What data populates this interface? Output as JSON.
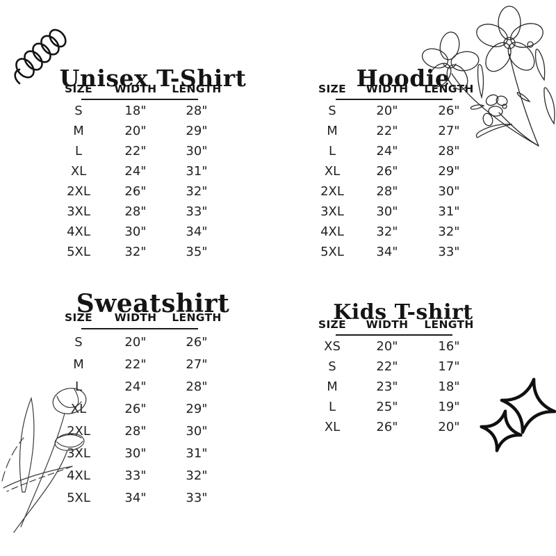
{
  "page": {
    "background_color": "#ffffff",
    "ink_color": "#1a1a1a"
  },
  "tables": [
    {
      "id": "unisex-tshirt",
      "title": "Unisex T-Shirt",
      "headers": [
        "SIZE",
        "WIDTH",
        "LENGTH"
      ],
      "rows": [
        [
          "S",
          "18\"",
          "28\""
        ],
        [
          "M",
          "20\"",
          "29\""
        ],
        [
          "L",
          "22\"",
          "30\""
        ],
        [
          "XL",
          "24\"",
          "31\""
        ],
        [
          "2XL",
          "26\"",
          "32\""
        ],
        [
          "3XL",
          "28\"",
          "33\""
        ],
        [
          "4XL",
          "30\"",
          "34\""
        ],
        [
          "5XL",
          "32\"",
          "35\""
        ]
      ]
    },
    {
      "id": "hoodie",
      "title": "Hoodie",
      "headers": [
        "SIZE",
        "WIDTH",
        "LENGTH"
      ],
      "rows": [
        [
          "S",
          "20\"",
          "26\""
        ],
        [
          "M",
          "22\"",
          "27\""
        ],
        [
          "L",
          "24\"",
          "28\""
        ],
        [
          "XL",
          "26\"",
          "29\""
        ],
        [
          "2XL",
          "28\"",
          "30\""
        ],
        [
          "3XL",
          "30\"",
          "31\""
        ],
        [
          "4XL",
          "32\"",
          "32\""
        ],
        [
          "5XL",
          "34\"",
          "33\""
        ]
      ]
    },
    {
      "id": "sweatshirt",
      "title": "Sweatshirt",
      "headers": [
        "SIZE",
        "WIDTH",
        "LENGTH"
      ],
      "rows": [
        [
          "S",
          "20\"",
          "26\""
        ],
        [
          "M",
          "22\"",
          "27\""
        ],
        [
          "L",
          "24\"",
          "28\""
        ],
        [
          "XL",
          "26\"",
          "29\""
        ],
        [
          "2XL",
          "28\"",
          "30\""
        ],
        [
          "3XL",
          "30\"",
          "31\""
        ],
        [
          "4XL",
          "33\"",
          "32\""
        ],
        [
          "5XL",
          "34\"",
          "33\""
        ]
      ]
    },
    {
      "id": "kids-tshirt",
      "title": "Kids T-shirt",
      "headers": [
        "SIZE",
        "WIDTH",
        "LENGTH"
      ],
      "rows": [
        [
          "XS",
          "20\"",
          "16\""
        ],
        [
          "S",
          "22\"",
          "17\""
        ],
        [
          "M",
          "23\"",
          "18\""
        ],
        [
          "L",
          "25\"",
          "19\""
        ],
        [
          "XL",
          "26\"",
          "20\""
        ]
      ]
    }
  ],
  "decorations": {
    "top_left": "spring-doodle-icon",
    "top_right": "flowers-line-art-icon",
    "bottom_left": "tulips-line-art-icon",
    "right": "sparkle-stars-icon"
  }
}
